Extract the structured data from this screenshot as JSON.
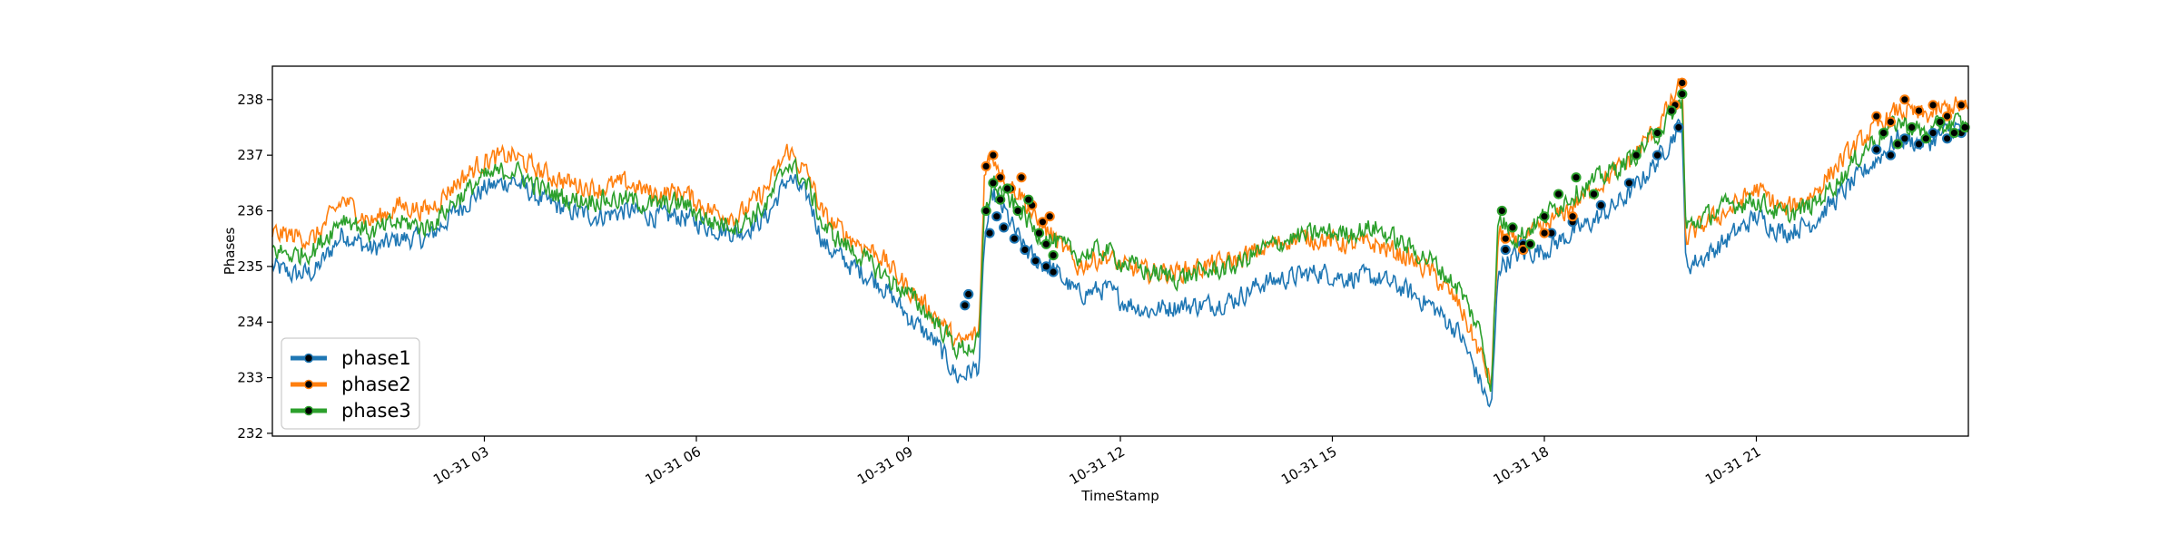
{
  "chart_data": {
    "type": "line",
    "xlabel": "TimeStamp",
    "ylabel": "Phases",
    "xlim": [
      "10-31 00:00",
      "10-31 23:59"
    ],
    "ylim": [
      231.95,
      238.6
    ],
    "x_ticks": [
      {
        "label": "10-31 03",
        "hours": 3
      },
      {
        "label": "10-31 06",
        "hours": 6
      },
      {
        "label": "10-31 09",
        "hours": 9
      },
      {
        "label": "10-31 12",
        "hours": 12
      },
      {
        "label": "10-31 15",
        "hours": 15
      },
      {
        "label": "10-31 18",
        "hours": 18
      },
      {
        "label": "10-31 21",
        "hours": 21
      }
    ],
    "y_ticks": [
      232,
      233,
      234,
      235,
      236,
      237,
      238
    ],
    "grid": false,
    "legend_position": "lower-left",
    "series": [
      {
        "name": "phase1",
        "color": "#1f77b4",
        "points": [
          [
            0.0,
            235.0
          ],
          [
            0.3,
            234.85
          ],
          [
            0.6,
            234.9
          ],
          [
            1.0,
            235.6
          ],
          [
            1.4,
            235.3
          ],
          [
            1.8,
            235.5
          ],
          [
            2.2,
            235.5
          ],
          [
            2.6,
            236.0
          ],
          [
            3.0,
            236.4
          ],
          [
            3.4,
            236.55
          ],
          [
            3.8,
            236.2
          ],
          [
            4.2,
            236.0
          ],
          [
            4.6,
            235.9
          ],
          [
            5.0,
            236.0
          ],
          [
            5.4,
            235.9
          ],
          [
            5.8,
            235.9
          ],
          [
            6.2,
            235.7
          ],
          [
            6.6,
            235.6
          ],
          [
            7.0,
            235.9
          ],
          [
            7.3,
            236.6
          ],
          [
            7.6,
            236.2
          ],
          [
            7.8,
            235.4
          ],
          [
            8.2,
            235.0
          ],
          [
            8.6,
            234.7
          ],
          [
            9.0,
            234.1
          ],
          [
            9.4,
            233.6
          ],
          [
            9.7,
            233.0
          ],
          [
            10.0,
            233.2
          ],
          [
            10.08,
            235.5
          ],
          [
            10.2,
            236.3
          ],
          [
            10.4,
            235.9
          ],
          [
            10.6,
            235.4
          ],
          [
            10.8,
            235.1
          ],
          [
            11.0,
            235.0
          ],
          [
            11.4,
            234.5
          ],
          [
            11.8,
            234.6
          ],
          [
            12.0,
            234.4
          ],
          [
            12.4,
            234.2
          ],
          [
            12.8,
            234.3
          ],
          [
            13.2,
            234.3
          ],
          [
            13.6,
            234.4
          ],
          [
            14.0,
            234.7
          ],
          [
            14.4,
            234.8
          ],
          [
            14.8,
            234.9
          ],
          [
            15.2,
            234.8
          ],
          [
            15.6,
            234.8
          ],
          [
            16.0,
            234.6
          ],
          [
            16.4,
            234.3
          ],
          [
            16.8,
            233.8
          ],
          [
            17.1,
            232.9
          ],
          [
            17.25,
            232.4
          ],
          [
            17.35,
            235.0
          ],
          [
            17.6,
            235.2
          ],
          [
            18.0,
            235.3
          ],
          [
            18.4,
            235.6
          ],
          [
            18.8,
            235.9
          ],
          [
            19.2,
            236.3
          ],
          [
            19.6,
            236.9
          ],
          [
            19.95,
            237.6
          ],
          [
            20.0,
            235.0
          ],
          [
            20.3,
            235.2
          ],
          [
            20.6,
            235.5
          ],
          [
            21.0,
            235.9
          ],
          [
            21.4,
            235.6
          ],
          [
            21.8,
            235.8
          ],
          [
            22.2,
            236.3
          ],
          [
            22.6,
            236.8
          ],
          [
            23.0,
            237.3
          ],
          [
            23.4,
            237.2
          ],
          [
            23.8,
            237.5
          ],
          [
            23.99,
            237.4
          ]
        ],
        "markers": [
          [
            9.8,
            234.3
          ],
          [
            9.85,
            234.5
          ],
          [
            10.15,
            235.6
          ],
          [
            10.25,
            235.9
          ],
          [
            10.35,
            235.7
          ],
          [
            10.5,
            235.5
          ],
          [
            10.65,
            235.3
          ],
          [
            10.8,
            235.1
          ],
          [
            10.95,
            235.0
          ],
          [
            11.05,
            234.9
          ],
          [
            17.45,
            235.3
          ],
          [
            17.7,
            235.4
          ],
          [
            18.1,
            235.6
          ],
          [
            18.4,
            235.8
          ],
          [
            18.8,
            236.1
          ],
          [
            19.2,
            236.5
          ],
          [
            19.6,
            237.0
          ],
          [
            19.9,
            237.5
          ],
          [
            22.7,
            237.1
          ],
          [
            22.9,
            237.0
          ],
          [
            23.1,
            237.3
          ],
          [
            23.3,
            237.2
          ],
          [
            23.5,
            237.4
          ],
          [
            23.7,
            237.3
          ],
          [
            23.9,
            237.4
          ]
        ]
      },
      {
        "name": "phase2",
        "color": "#ff7f0e",
        "points": [
          [
            0.0,
            235.6
          ],
          [
            0.3,
            235.55
          ],
          [
            0.6,
            235.5
          ],
          [
            1.0,
            236.2
          ],
          [
            1.4,
            235.8
          ],
          [
            1.8,
            236.1
          ],
          [
            2.2,
            236.0
          ],
          [
            2.6,
            236.5
          ],
          [
            3.0,
            236.9
          ],
          [
            3.4,
            237.0
          ],
          [
            3.8,
            236.7
          ],
          [
            4.2,
            236.5
          ],
          [
            4.6,
            236.4
          ],
          [
            5.0,
            236.5
          ],
          [
            5.4,
            236.3
          ],
          [
            5.8,
            236.35
          ],
          [
            6.2,
            236.0
          ],
          [
            6.6,
            235.9
          ],
          [
            7.0,
            236.4
          ],
          [
            7.3,
            237.1
          ],
          [
            7.6,
            236.6
          ],
          [
            7.8,
            235.9
          ],
          [
            8.2,
            235.5
          ],
          [
            8.6,
            235.2
          ],
          [
            9.0,
            234.6
          ],
          [
            9.4,
            234.1
          ],
          [
            9.7,
            233.6
          ],
          [
            10.0,
            233.8
          ],
          [
            10.08,
            236.8
          ],
          [
            10.2,
            237.0
          ],
          [
            10.4,
            236.5
          ],
          [
            10.6,
            236.3
          ],
          [
            10.8,
            235.8
          ],
          [
            11.0,
            235.6
          ],
          [
            11.4,
            235.0
          ],
          [
            11.8,
            235.2
          ],
          [
            12.0,
            235.0
          ],
          [
            12.4,
            234.9
          ],
          [
            12.8,
            234.9
          ],
          [
            13.2,
            235.0
          ],
          [
            13.6,
            235.1
          ],
          [
            14.0,
            235.3
          ],
          [
            14.4,
            235.5
          ],
          [
            14.8,
            235.5
          ],
          [
            15.2,
            235.4
          ],
          [
            15.6,
            235.4
          ],
          [
            16.0,
            235.2
          ],
          [
            16.4,
            234.9
          ],
          [
            16.8,
            234.3
          ],
          [
            17.1,
            233.4
          ],
          [
            17.25,
            232.9
          ],
          [
            17.35,
            235.6
          ],
          [
            17.6,
            235.4
          ],
          [
            18.0,
            235.7
          ],
          [
            18.4,
            236.1
          ],
          [
            18.8,
            236.5
          ],
          [
            19.2,
            236.9
          ],
          [
            19.6,
            237.5
          ],
          [
            19.95,
            238.3
          ],
          [
            20.0,
            235.5
          ],
          [
            20.3,
            235.8
          ],
          [
            20.6,
            236.0
          ],
          [
            21.0,
            236.4
          ],
          [
            21.4,
            236.0
          ],
          [
            21.8,
            236.3
          ],
          [
            22.2,
            236.9
          ],
          [
            22.6,
            237.4
          ],
          [
            23.0,
            237.8
          ],
          [
            23.4,
            237.7
          ],
          [
            23.8,
            237.9
          ],
          [
            23.99,
            237.8
          ]
        ],
        "markers": [
          [
            10.1,
            236.8
          ],
          [
            10.2,
            237.0
          ],
          [
            10.3,
            236.6
          ],
          [
            10.45,
            236.4
          ],
          [
            10.6,
            236.6
          ],
          [
            10.75,
            236.1
          ],
          [
            10.9,
            235.8
          ],
          [
            11.0,
            235.9
          ],
          [
            17.45,
            235.5
          ],
          [
            17.7,
            235.3
          ],
          [
            18.0,
            235.6
          ],
          [
            18.4,
            235.9
          ],
          [
            19.85,
            237.9
          ],
          [
            19.95,
            238.3
          ],
          [
            22.7,
            237.7
          ],
          [
            22.9,
            237.6
          ],
          [
            23.1,
            238.0
          ],
          [
            23.3,
            237.8
          ],
          [
            23.5,
            237.9
          ],
          [
            23.7,
            237.7
          ],
          [
            23.9,
            237.9
          ]
        ]
      },
      {
        "name": "phase3",
        "color": "#2ca02c",
        "points": [
          [
            0.0,
            235.3
          ],
          [
            0.3,
            235.2
          ],
          [
            0.6,
            235.3
          ],
          [
            1.0,
            235.9
          ],
          [
            1.4,
            235.6
          ],
          [
            1.8,
            235.8
          ],
          [
            2.2,
            235.7
          ],
          [
            2.6,
            236.2
          ],
          [
            3.0,
            236.6
          ],
          [
            3.4,
            236.75
          ],
          [
            3.8,
            236.4
          ],
          [
            4.2,
            236.2
          ],
          [
            4.6,
            236.2
          ],
          [
            5.0,
            236.2
          ],
          [
            5.4,
            236.1
          ],
          [
            5.8,
            236.15
          ],
          [
            6.2,
            235.8
          ],
          [
            6.6,
            235.75
          ],
          [
            7.0,
            236.1
          ],
          [
            7.3,
            236.9
          ],
          [
            7.6,
            236.4
          ],
          [
            7.8,
            235.7
          ],
          [
            8.2,
            235.3
          ],
          [
            8.6,
            234.9
          ],
          [
            9.0,
            234.5
          ],
          [
            9.4,
            234.0
          ],
          [
            9.7,
            233.5
          ],
          [
            10.0,
            233.6
          ],
          [
            10.08,
            236.0
          ],
          [
            10.2,
            236.5
          ],
          [
            10.4,
            236.2
          ],
          [
            10.6,
            236.0
          ],
          [
            10.8,
            235.6
          ],
          [
            11.0,
            235.5
          ],
          [
            11.4,
            235.2
          ],
          [
            11.8,
            235.3
          ],
          [
            12.0,
            235.1
          ],
          [
            12.4,
            234.9
          ],
          [
            12.8,
            234.8
          ],
          [
            13.2,
            234.9
          ],
          [
            13.6,
            235.0
          ],
          [
            14.0,
            235.3
          ],
          [
            14.4,
            235.5
          ],
          [
            14.8,
            235.6
          ],
          [
            15.2,
            235.6
          ],
          [
            15.6,
            235.7
          ],
          [
            16.0,
            235.4
          ],
          [
            16.4,
            235.1
          ],
          [
            16.8,
            234.6
          ],
          [
            17.1,
            233.8
          ],
          [
            17.25,
            232.8
          ],
          [
            17.35,
            235.9
          ],
          [
            17.6,
            235.5
          ],
          [
            18.0,
            235.9
          ],
          [
            18.4,
            236.3
          ],
          [
            18.8,
            236.6
          ],
          [
            19.2,
            236.9
          ],
          [
            19.6,
            237.4
          ],
          [
            19.95,
            238.0
          ],
          [
            20.0,
            235.7
          ],
          [
            20.3,
            235.9
          ],
          [
            20.6,
            236.1
          ],
          [
            21.0,
            236.2
          ],
          [
            21.4,
            235.9
          ],
          [
            21.8,
            236.1
          ],
          [
            22.2,
            236.6
          ],
          [
            22.6,
            237.2
          ],
          [
            23.0,
            237.6
          ],
          [
            23.4,
            237.4
          ],
          [
            23.8,
            237.6
          ],
          [
            23.99,
            237.5
          ]
        ],
        "markers": [
          [
            10.1,
            236.0
          ],
          [
            10.2,
            236.5
          ],
          [
            10.3,
            236.2
          ],
          [
            10.4,
            236.4
          ],
          [
            10.55,
            236.0
          ],
          [
            10.7,
            236.2
          ],
          [
            10.85,
            235.6
          ],
          [
            10.95,
            235.4
          ],
          [
            11.05,
            235.2
          ],
          [
            17.4,
            236.0
          ],
          [
            17.55,
            235.7
          ],
          [
            17.8,
            235.4
          ],
          [
            18.0,
            235.9
          ],
          [
            18.2,
            236.3
          ],
          [
            18.45,
            236.6
          ],
          [
            18.7,
            236.3
          ],
          [
            19.3,
            237.0
          ],
          [
            19.6,
            237.4
          ],
          [
            19.8,
            237.8
          ],
          [
            19.95,
            238.1
          ],
          [
            22.8,
            237.4
          ],
          [
            23.0,
            237.2
          ],
          [
            23.2,
            237.5
          ],
          [
            23.4,
            237.3
          ],
          [
            23.6,
            237.6
          ],
          [
            23.8,
            237.4
          ],
          [
            23.95,
            237.5
          ]
        ]
      }
    ]
  }
}
